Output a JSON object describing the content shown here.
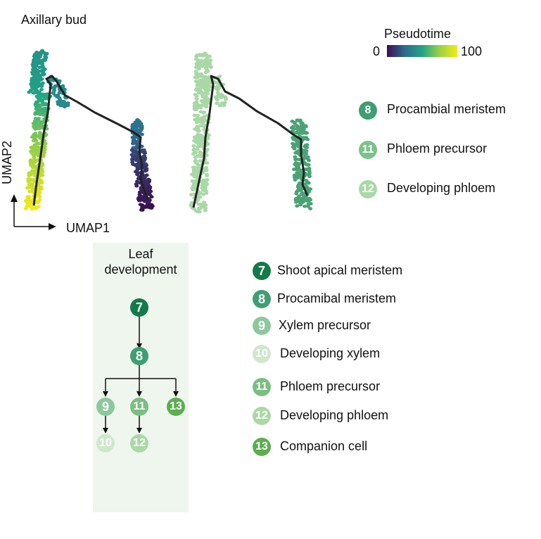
{
  "title": "Axillary bud",
  "pseudotime": {
    "label": "Pseudotime",
    "min_label": "0",
    "max_label": "100",
    "colors": [
      "#3b0f4f",
      "#2f6a8e",
      "#21a585",
      "#9bd147",
      "#f2ea18"
    ]
  },
  "axes": {
    "x_label": "UMAP1",
    "y_label": "UMAP2"
  },
  "umap_legend": [
    {
      "num": "8",
      "label": "Procambial meristem",
      "color": "#3f9e73"
    },
    {
      "num": "11",
      "label": "Phloem precursor",
      "color": "#7bc38a"
    },
    {
      "num": "12",
      "label": "Developing phloem",
      "color": "#a9d8a6"
    }
  ],
  "panel_colors": {
    "bg": "#eef6ee",
    "branch_bud_pseudotime_top": "#2a6f8e",
    "right_plot_green": "#a9d8a6",
    "right_plot_dark": "#4aa275"
  },
  "leaf_panel": {
    "title_line1": "Leaf",
    "title_line2": "development",
    "nodes": [
      {
        "num": "7",
        "color": "#137a4a"
      },
      {
        "num": "8",
        "color": "#3f9e73"
      },
      {
        "num": "9",
        "color": "#8dc89c"
      },
      {
        "num": "11",
        "color": "#79bf80"
      },
      {
        "num": "13",
        "color": "#5cae4f"
      },
      {
        "num": "10",
        "color": "#cfe8cc"
      },
      {
        "num": "12",
        "color": "#abd8a5"
      }
    ]
  },
  "cell_legend": [
    {
      "num": "7",
      "label": "Shoot apical meristem",
      "color": "#137a4a"
    },
    {
      "num": "8",
      "label": "Procamibal meristem",
      "color": "#3f9e73"
    },
    {
      "num": "9",
      "label": "Xylem precursor",
      "color": "#8dc89c"
    },
    {
      "num": "10",
      "label": "Developing xylem",
      "color": "#cfe8cc"
    },
    {
      "num": "11",
      "label": "Phloem precursor",
      "color": "#79bf80"
    },
    {
      "num": "12",
      "label": "Developing phloem",
      "color": "#abd8a5"
    },
    {
      "num": "13",
      "label": "Companion cell",
      "color": "#5cae4f"
    }
  ]
}
